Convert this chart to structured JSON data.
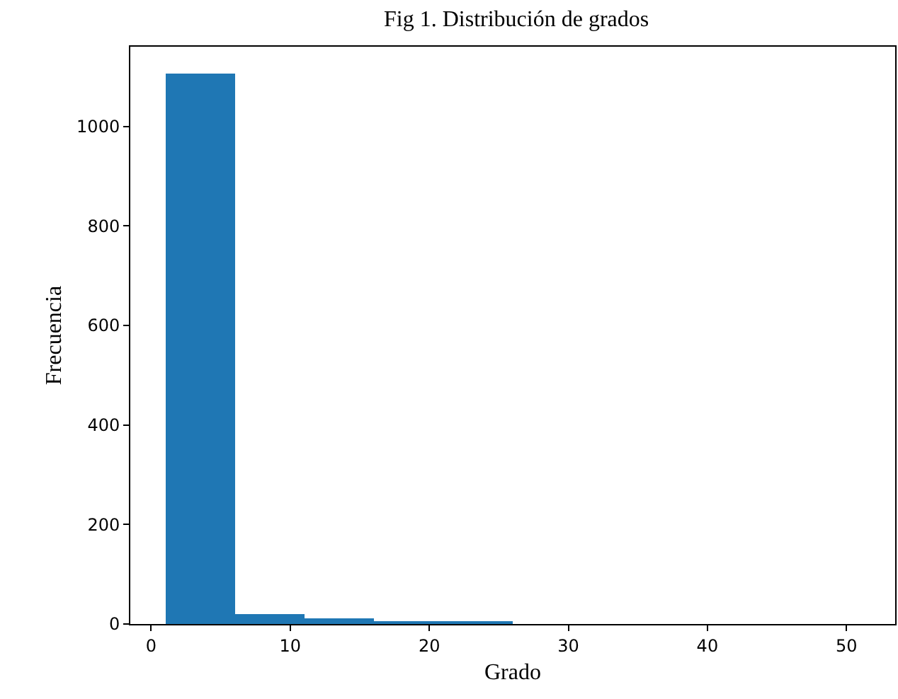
{
  "chart_data": {
    "type": "histogram",
    "title": "Fig 1. Distribución de grados",
    "xlabel": "Grado",
    "ylabel": "Frecuencia",
    "bins": [
      1,
      6,
      11,
      16,
      21,
      26,
      31,
      36,
      41,
      46,
      51
    ],
    "values": [
      1105,
      21,
      10,
      6,
      3,
      0,
      0,
      0,
      0,
      0
    ],
    "color": "#1f77b4",
    "xlim": [
      -1.5,
      53.5
    ],
    "xticks": [
      0,
      10,
      20,
      30,
      40,
      50
    ],
    "ylim": [
      0,
      1160
    ],
    "yticks": [
      0,
      200,
      400,
      600,
      800,
      1000
    ],
    "grid": false
  }
}
